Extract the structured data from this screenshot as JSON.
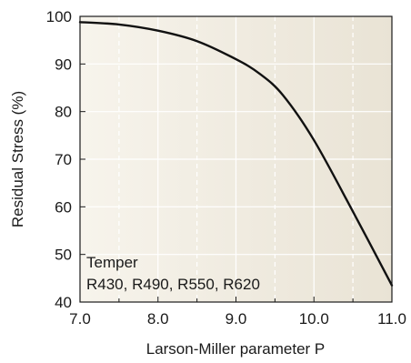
{
  "chart_data": {
    "type": "line",
    "title": "",
    "xlabel": "Larson-Miller parameter P",
    "ylabel": "Residual Stress (%)",
    "xlim": [
      7.0,
      11.0
    ],
    "ylim": [
      40,
      100
    ],
    "xticks": [
      "7.0",
      "8.0",
      "9.0",
      "10.0",
      "11.0"
    ],
    "yticks": [
      "40",
      "50",
      "60",
      "70",
      "80",
      "90",
      "100"
    ],
    "grid": "white lines at 0.5 intervals on x and 10 on y",
    "background": "beige gradient, darker toward right",
    "annotation": {
      "line1": "Temper",
      "line2": "R430, R490, R550, R620"
    },
    "series": [
      {
        "color": "#111111",
        "x": [
          7.0,
          7.5,
          8.0,
          8.5,
          9.0,
          9.3,
          9.6,
          10.0,
          10.5,
          11.0
        ],
        "y": [
          98.8,
          98.3,
          97.0,
          94.8,
          91.0,
          88.0,
          83.5,
          74.0,
          59.0,
          43.5
        ]
      }
    ]
  }
}
